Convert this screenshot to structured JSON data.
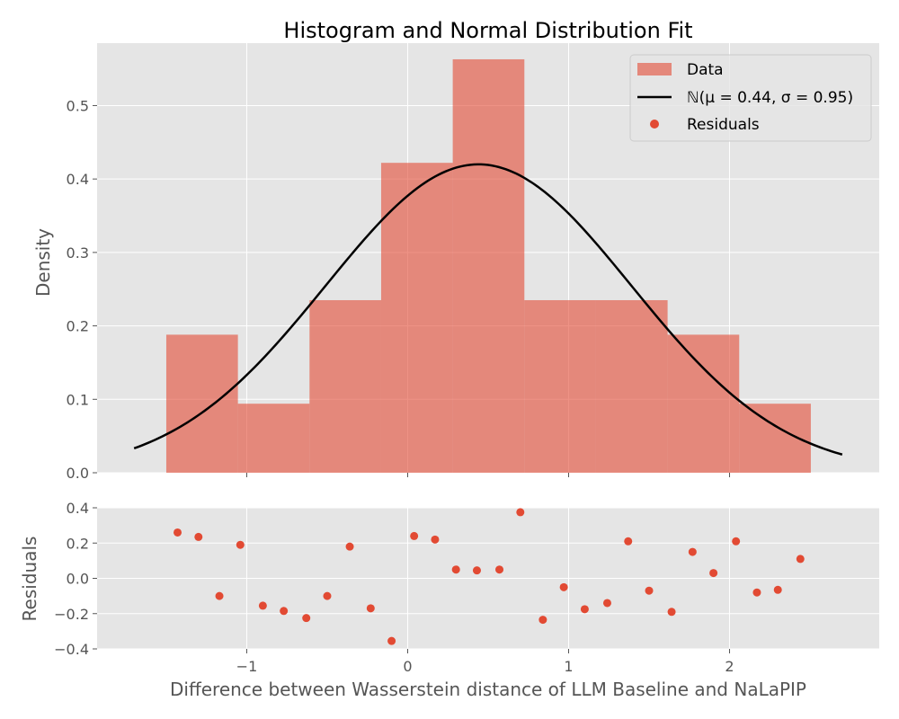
{
  "chart_data": [
    {
      "type": "bar",
      "panel": "histogram",
      "title": "Histogram and Normal Distribution Fit",
      "xlabel": "",
      "ylabel": "Density",
      "xlim": [
        -1.93,
        2.93
      ],
      "ylim": [
        0,
        0.585
      ],
      "grid": true,
      "legend_position": "top-right",
      "hist_color": "#E24A33",
      "fit_color": "#000000",
      "x_ticks": [
        -1,
        0,
        1,
        2
      ],
      "y_ticks": [
        0.0,
        0.1,
        0.2,
        0.3,
        0.4,
        0.5
      ],
      "y_tick_labels": [
        "0.0",
        "0.1",
        "0.2",
        "0.3",
        "0.4",
        "0.5"
      ],
      "bins": [
        {
          "x0": -1.5,
          "x1": -1.055,
          "value": 0.188
        },
        {
          "x0": -1.055,
          "x1": -0.61,
          "value": 0.094
        },
        {
          "x0": -0.61,
          "x1": -0.165,
          "value": 0.235
        },
        {
          "x0": -0.165,
          "x1": 0.28,
          "value": 0.422
        },
        {
          "x0": 0.28,
          "x1": 0.725,
          "value": 0.563
        },
        {
          "x0": 0.725,
          "x1": 1.17,
          "value": 0.235
        },
        {
          "x0": 1.17,
          "x1": 1.615,
          "value": 0.235
        },
        {
          "x0": 1.615,
          "x1": 2.06,
          "value": 0.188
        },
        {
          "x0": 2.06,
          "x1": 2.505,
          "value": 0.094
        }
      ],
      "fit": {
        "mu": 0.44,
        "sigma": 0.95,
        "x_range": [
          -1.7,
          2.7
        ]
      },
      "legend": {
        "data_label": "Data",
        "fit_label": "ℕ(μ = 0.44, σ = 0.95)",
        "residuals_label": "Residuals"
      }
    },
    {
      "type": "scatter",
      "panel": "residuals",
      "xlabel": "Difference between Wasserstein distance of LLM Baseline and NaLaPIP",
      "ylabel": "Residuals",
      "xlim": [
        -1.93,
        2.93
      ],
      "ylim": [
        -0.4,
        0.4
      ],
      "grid": true,
      "point_color": "#E24A33",
      "x_ticks": [
        -1,
        0,
        1,
        2
      ],
      "x_tick_labels": [
        "−1",
        "0",
        "1",
        "2"
      ],
      "y_ticks": [
        -0.4,
        -0.2,
        0.0,
        0.2,
        0.4
      ],
      "y_tick_labels": [
        "−0.4",
        "−0.2",
        "0.0",
        "0.2",
        "0.4"
      ],
      "points": [
        [
          -1.43,
          0.26
        ],
        [
          -1.3,
          0.235
        ],
        [
          -1.17,
          -0.1
        ],
        [
          -1.04,
          0.19
        ],
        [
          -0.9,
          -0.155
        ],
        [
          -0.77,
          -0.185
        ],
        [
          -0.63,
          -0.225
        ],
        [
          -0.5,
          -0.1
        ],
        [
          -0.36,
          0.18
        ],
        [
          -0.23,
          -0.17
        ],
        [
          -0.1,
          -0.355
        ],
        [
          0.04,
          0.24
        ],
        [
          0.17,
          0.22
        ],
        [
          0.3,
          0.05
        ],
        [
          0.43,
          0.045
        ],
        [
          0.57,
          0.05
        ],
        [
          0.7,
          0.375
        ],
        [
          0.84,
          -0.235
        ],
        [
          0.97,
          -0.05
        ],
        [
          1.1,
          -0.175
        ],
        [
          1.24,
          -0.14
        ],
        [
          1.37,
          0.21
        ],
        [
          1.5,
          -0.07
        ],
        [
          1.64,
          -0.19
        ],
        [
          1.77,
          0.15
        ],
        [
          1.9,
          0.03
        ],
        [
          2.04,
          0.21
        ],
        [
          2.17,
          -0.08
        ],
        [
          2.3,
          -0.065
        ],
        [
          2.44,
          0.11
        ]
      ]
    }
  ]
}
